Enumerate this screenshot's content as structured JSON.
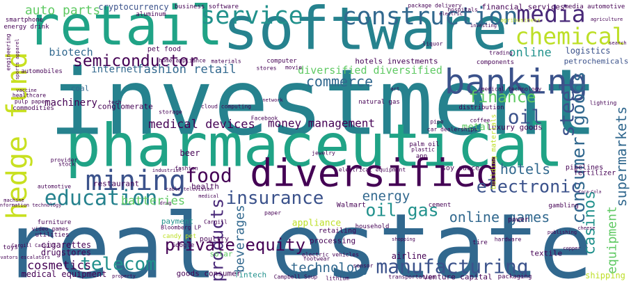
{
  "words": [
    "real estate",
    "investment",
    "pharmaceutical",
    "software",
    "retail",
    "diversified",
    "banking",
    "construction",
    "chemical",
    "service",
    "media",
    "hedge fund",
    "mining",
    "education",
    "food",
    "electronic",
    "hotels",
    "insurance",
    "energy",
    "oil gas",
    "online games",
    "batteries",
    "products",
    "beverages",
    "private equity",
    "telecom",
    "cosmetics",
    "manufacturing",
    "technology",
    "casinos",
    "equipment",
    "consumer goods",
    "supermarkets",
    "steel",
    "oil",
    "finance",
    "commerce",
    "diversified diversified",
    "hotels investments",
    "semiconductor",
    "fashion retail",
    "internet",
    "biotech",
    "auto parts",
    "cryptocurrency",
    "business software",
    "online",
    "logistics",
    "petrochemicals",
    "financial services",
    "media automotive",
    "machinery",
    "conglomerate",
    "medical devices",
    "money management",
    "metal",
    "luxury goods",
    "coal",
    "restaurant",
    "health",
    "beer",
    "soy sauce",
    "fertilizer",
    "pipelines",
    "Walmart",
    "cement",
    "gambling",
    "appliance",
    "payment",
    "Bloomberg LP",
    "Cargill",
    "paper",
    "poultry",
    "processing",
    "retailing",
    "household",
    "power",
    "tire",
    "hardware",
    "textile",
    "airline",
    "shipping",
    "venture capital",
    "packaging",
    "transportation",
    "Campbell Soup",
    "lithium",
    "fintech",
    "goods consumer",
    "medical equipment",
    "drugstores",
    "cigarettes",
    "utilities",
    "furniture",
    "toys",
    "solar",
    "Google",
    "candy pet",
    "footwear",
    "electric vehicles",
    "smartphone",
    "energy drink",
    "aluminum",
    "pet food",
    "automobiles",
    "healthcare",
    "pulp paper",
    "commodities",
    "cloud computing",
    "Facebook",
    "natural gas",
    "medical technology",
    "distribution",
    "coffee",
    "components",
    "trading",
    "computer",
    "stores",
    "movie",
    "liquor",
    "hospitals",
    "package delivery",
    "agribusiness",
    "fashion",
    "jewelry",
    "palm oil",
    "plastic",
    "app",
    "electrical equipment",
    "car dealerships",
    "pipe",
    "Coca-Cola",
    "lighting",
    "search",
    "sensor",
    "shopping",
    "copper",
    "publishing",
    "cheese",
    "home appliance",
    "materials",
    "storage",
    "tech",
    "vaccine",
    "provider",
    "stock",
    "automotive",
    "machine",
    "information technology",
    "network",
    "drug",
    "medical",
    "industrial",
    "cable television",
    "agriculture",
    "art",
    "building materials",
    "property",
    "investing",
    "electric",
    "video games",
    "Cargill Cargill",
    "engineering",
    "sports apparel",
    "elevators escalators"
  ]
}
